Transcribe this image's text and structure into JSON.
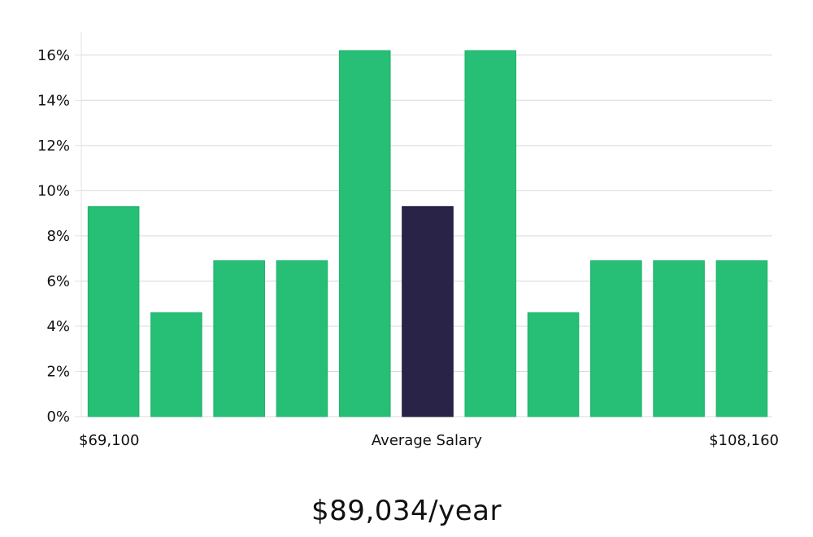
{
  "chart_data": {
    "type": "bar",
    "categories": [
      "",
      "",
      "",
      "",
      "",
      "",
      "",
      "",
      "",
      "",
      ""
    ],
    "values": [
      9.3,
      4.6,
      6.9,
      6.9,
      16.2,
      9.3,
      16.2,
      4.6,
      6.9,
      6.9,
      6.9
    ],
    "highlight_index": 5,
    "ylim": [
      0,
      17
    ],
    "yticks": [
      0,
      2,
      4,
      6,
      8,
      10,
      12,
      14,
      16
    ],
    "ytick_suffix": "%",
    "grid": true,
    "colors": {
      "bar": "#27be76",
      "highlight": "#282347"
    },
    "x_labels": {
      "left": "$69,100",
      "center": "Average Salary",
      "right": "$108,160"
    }
  },
  "caption": "$89,034/year"
}
